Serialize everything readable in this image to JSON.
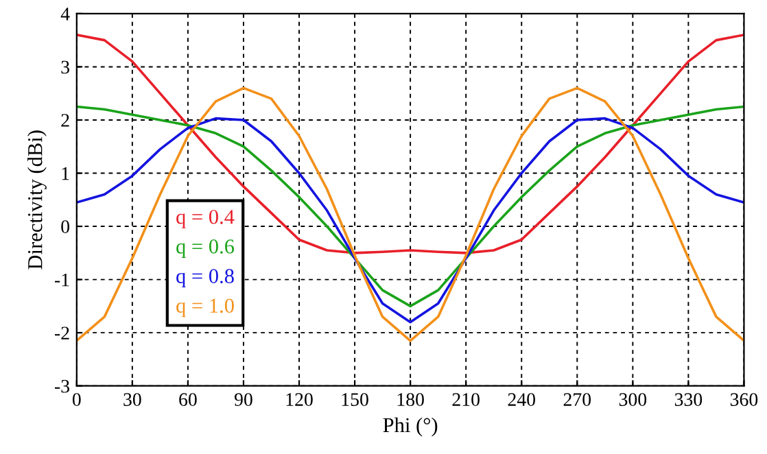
{
  "chart_data": {
    "type": "line",
    "xlabel": "Phi (°)",
    "ylabel": "Directivity (dBi)",
    "x": [
      0,
      15,
      30,
      45,
      60,
      75,
      90,
      105,
      120,
      135,
      150,
      165,
      180,
      195,
      210,
      225,
      240,
      255,
      270,
      285,
      300,
      315,
      330,
      345,
      360
    ],
    "series": [
      {
        "name": "q = 0.4",
        "color": "#e8202a",
        "values": [
          3.6,
          3.5,
          3.1,
          2.5,
          1.9,
          1.3,
          0.75,
          0.25,
          -0.25,
          -0.45,
          -0.5,
          -0.48,
          -0.45,
          -0.48,
          -0.5,
          -0.45,
          -0.25,
          0.25,
          0.75,
          1.3,
          1.9,
          2.5,
          3.1,
          3.5,
          3.6
        ]
      },
      {
        "name": "q = 0.6",
        "color": "#1aa31a",
        "values": [
          2.25,
          2.2,
          2.1,
          2.0,
          1.9,
          1.75,
          1.5,
          1.05,
          0.55,
          0.0,
          -0.6,
          -1.2,
          -1.5,
          -1.2,
          -0.6,
          0.0,
          0.55,
          1.05,
          1.5,
          1.75,
          1.9,
          2.0,
          2.1,
          2.2,
          2.25
        ]
      },
      {
        "name": "q = 0.8",
        "color": "#1414e0",
        "values": [
          0.45,
          0.6,
          0.95,
          1.45,
          1.85,
          2.03,
          2.0,
          1.6,
          1.0,
          0.3,
          -0.6,
          -1.45,
          -1.8,
          -1.45,
          -0.6,
          0.3,
          1.0,
          1.6,
          2.0,
          2.03,
          1.85,
          1.45,
          0.95,
          0.6,
          0.45
        ]
      },
      {
        "name": "q = 1.0",
        "color": "#f39019",
        "values": [
          -2.15,
          -1.7,
          -0.6,
          0.6,
          1.7,
          2.35,
          2.6,
          2.4,
          1.7,
          0.7,
          -0.55,
          -1.7,
          -2.15,
          -1.7,
          -0.55,
          0.7,
          1.7,
          2.4,
          2.6,
          2.35,
          1.7,
          0.6,
          -0.6,
          -1.7,
          -2.15
        ]
      }
    ],
    "xlim": [
      0,
      360
    ],
    "xticks": [
      0,
      30,
      60,
      90,
      120,
      150,
      180,
      210,
      240,
      270,
      300,
      330,
      360
    ],
    "ylim": [
      -3,
      4
    ],
    "yticks": [
      -3,
      -2,
      -1,
      0,
      1,
      2,
      3,
      4
    ],
    "grid": true,
    "legend": "left",
    "line_style": "solid",
    "marker": "none"
  }
}
